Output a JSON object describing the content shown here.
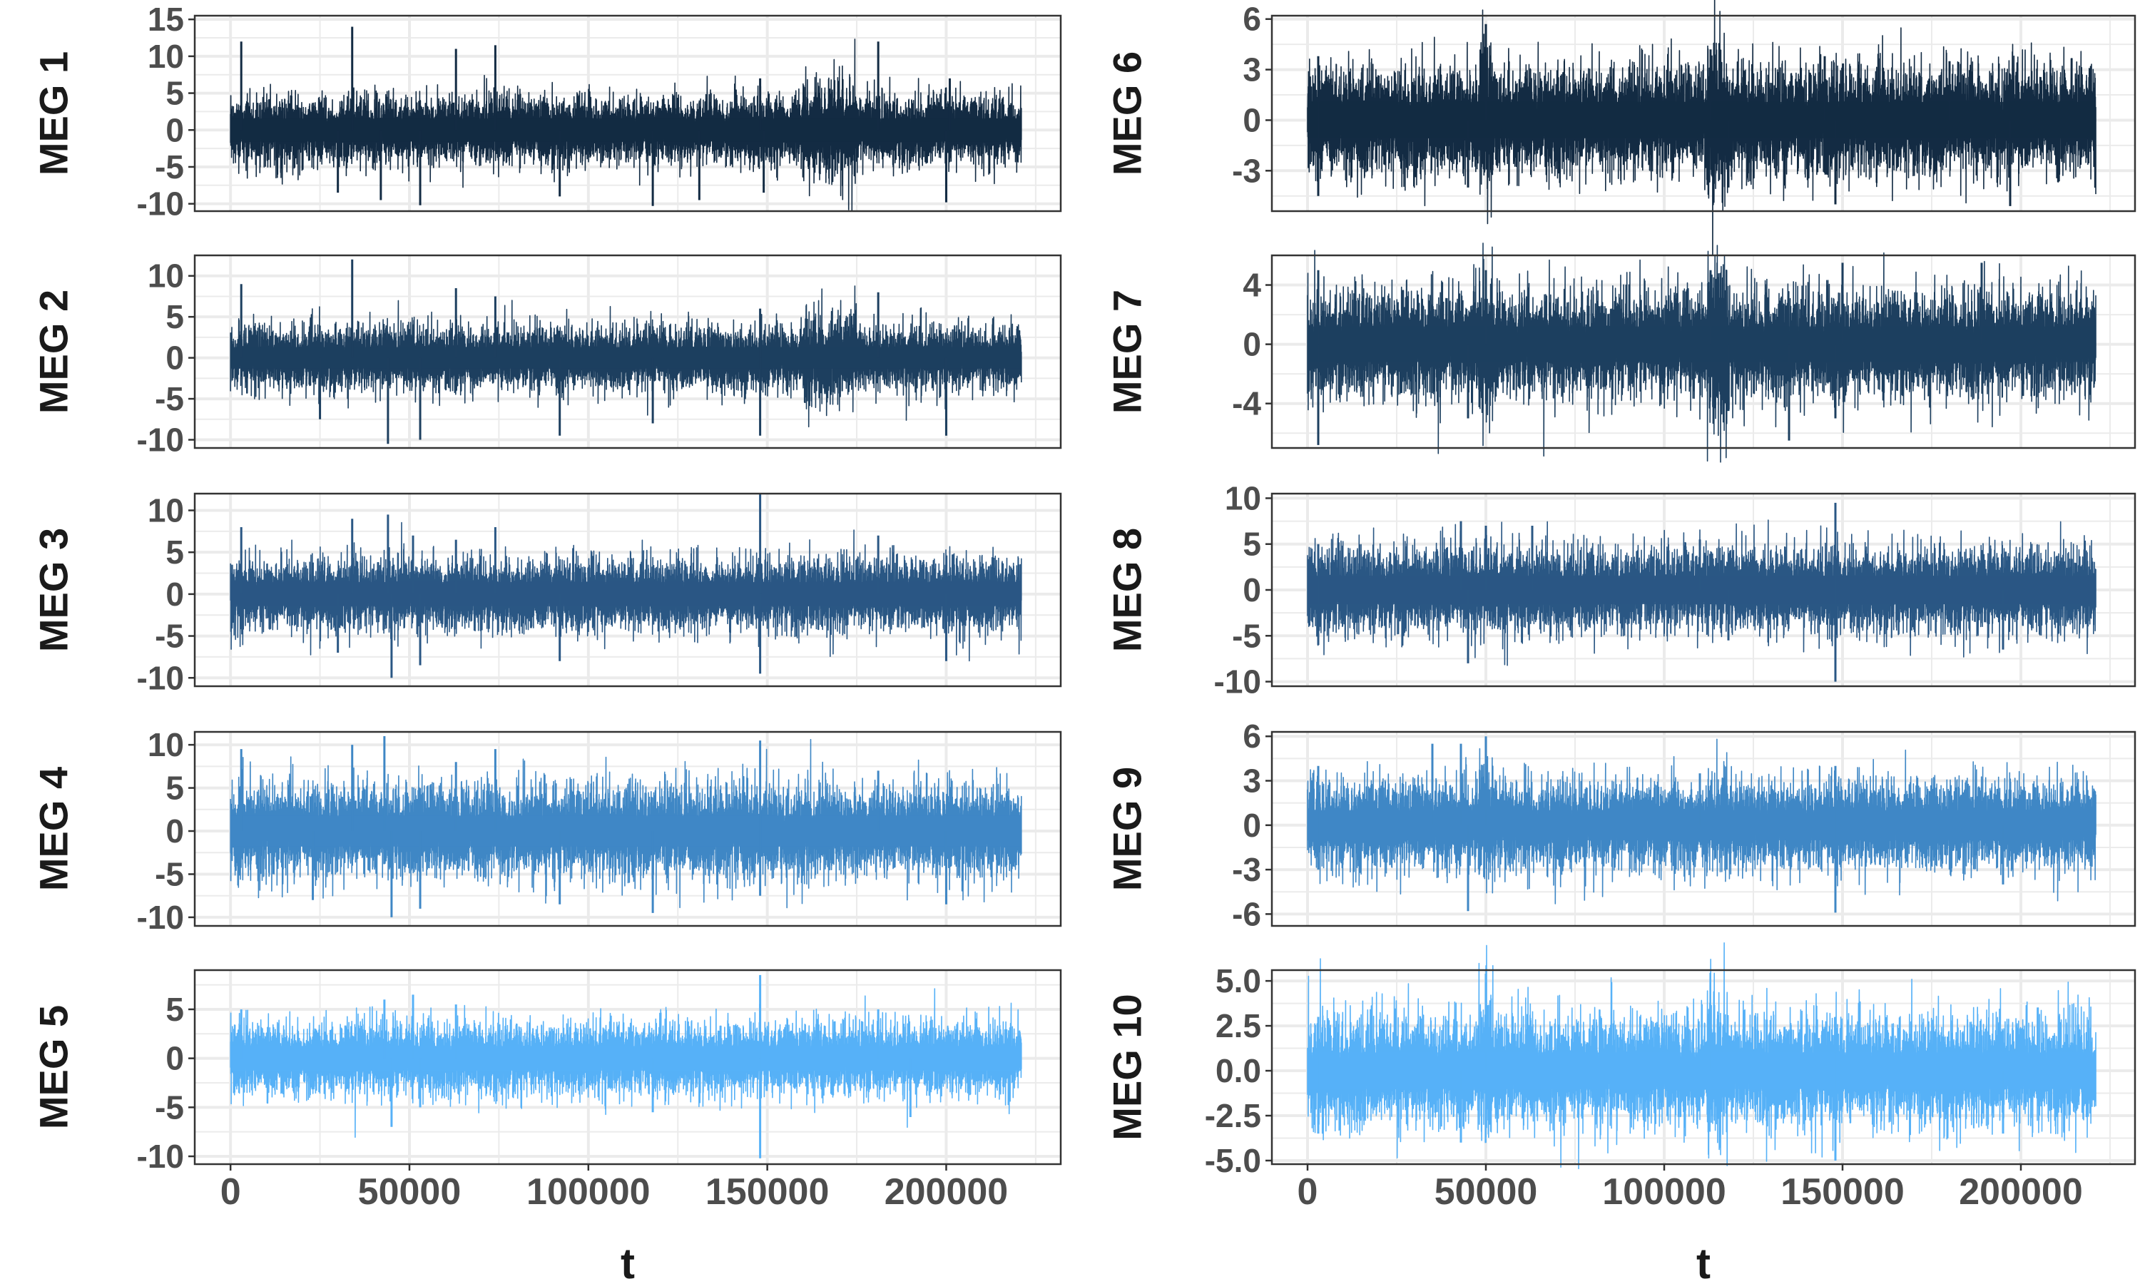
{
  "chart_data": {
    "type": "line",
    "x_axis": {
      "label": "t",
      "range": [
        -10000,
        232000
      ],
      "ticks": [
        0,
        50000,
        100000,
        150000,
        200000
      ],
      "tick_labels": [
        "0",
        "50000",
        "100000",
        "150000",
        "200000"
      ]
    },
    "t_range": [
      0,
      221000
    ],
    "background": "#ffffff",
    "grid": true,
    "grid_color": "#ebebeb",
    "panel_border_color": "#333333",
    "layout": "two columns of five panels",
    "legend": "none",
    "panels": [
      {
        "name": "MEG 1",
        "color": "#132b43",
        "ylim": [
          -11,
          15.5
        ],
        "yticks": [
          -10,
          -5,
          0,
          5,
          10,
          15
        ],
        "ytick_labels": [
          "-10",
          "-5",
          "0",
          "5",
          "10",
          "15"
        ],
        "band_sd": 1.3,
        "spikes": [
          [
            3000,
            12
          ],
          [
            34000,
            14
          ],
          [
            63000,
            11
          ],
          [
            74000,
            11.5
          ],
          [
            148000,
            7
          ],
          [
            181000,
            12
          ],
          [
            201000,
            7
          ],
          [
            42000,
            -9.5
          ],
          [
            53000,
            -10.2
          ],
          [
            92000,
            -9
          ],
          [
            118000,
            -10.3
          ],
          [
            131000,
            -9.5
          ],
          [
            149000,
            -8.5
          ],
          [
            200000,
            -9.8
          ],
          [
            30000,
            -8.5
          ]
        ],
        "bumps": [
          [
            160000,
            175000,
            0.9
          ]
        ]
      },
      {
        "name": "MEG 2",
        "color": "#1d3f5f",
        "ylim": [
          -11,
          12.5
        ],
        "yticks": [
          -10,
          -5,
          0,
          5,
          10
        ],
        "ytick_labels": [
          "-10",
          "-5",
          "0",
          "5",
          "10"
        ],
        "band_sd": 1.1,
        "spikes": [
          [
            3000,
            9
          ],
          [
            34000,
            12
          ],
          [
            63000,
            8.5
          ],
          [
            74000,
            7.5
          ],
          [
            148000,
            6
          ],
          [
            181000,
            8
          ],
          [
            44000,
            -10.5
          ],
          [
            53000,
            -10
          ],
          [
            92000,
            -9.5
          ],
          [
            148000,
            -9.5
          ],
          [
            200000,
            -9.5
          ],
          [
            118000,
            -8
          ],
          [
            25000,
            -7.5
          ]
        ],
        "bumps": [
          [
            160000,
            175000,
            0.8
          ]
        ]
      },
      {
        "name": "MEG 3",
        "color": "#2a5784",
        "ylim": [
          -11,
          12
        ],
        "yticks": [
          -10,
          -5,
          0,
          5,
          10
        ],
        "ytick_labels": [
          "-10",
          "-5",
          "0",
          "5",
          "10"
        ],
        "band_sd": 1.2,
        "spikes": [
          [
            3000,
            8
          ],
          [
            34000,
            9
          ],
          [
            44000,
            9.5
          ],
          [
            51000,
            7
          ],
          [
            63000,
            6.5
          ],
          [
            74000,
            8
          ],
          [
            148000,
            12
          ],
          [
            181000,
            7
          ],
          [
            45000,
            -10
          ],
          [
            53000,
            -8.5
          ],
          [
            92000,
            -8
          ],
          [
            148000,
            -9.5
          ],
          [
            200000,
            -8
          ],
          [
            30000,
            -7
          ]
        ],
        "bumps": []
      },
      {
        "name": "MEG 4",
        "color": "#3f87c5",
        "ylim": [
          -11,
          11.5
        ],
        "yticks": [
          -10,
          -5,
          0,
          5,
          10
        ],
        "ytick_labels": [
          "-10",
          "-5",
          "0",
          "5",
          "10"
        ],
        "band_sd": 1.5,
        "spikes": [
          [
            3000,
            9.5
          ],
          [
            34000,
            10
          ],
          [
            43000,
            11
          ],
          [
            63000,
            8
          ],
          [
            74000,
            9.5
          ],
          [
            148000,
            10.5
          ],
          [
            181000,
            7
          ],
          [
            45000,
            -10
          ],
          [
            53000,
            -9
          ],
          [
            92000,
            -8.5
          ],
          [
            118000,
            -9.5
          ],
          [
            148000,
            -7.5
          ],
          [
            200000,
            -8.5
          ],
          [
            23000,
            -8
          ]
        ],
        "bumps": []
      },
      {
        "name": "MEG 5",
        "color": "#56b1f7",
        "ylim": [
          -10.8,
          9
        ],
        "yticks": [
          -10,
          -5,
          0,
          5
        ],
        "ytick_labels": [
          "-10",
          "-5",
          "0",
          "5"
        ],
        "band_sd": 1.05,
        "spikes": [
          [
            3000,
            5
          ],
          [
            43000,
            6
          ],
          [
            51000,
            6.5
          ],
          [
            63000,
            5.5
          ],
          [
            148000,
            8.5
          ],
          [
            181000,
            5
          ],
          [
            45000,
            -7
          ],
          [
            53000,
            -5
          ],
          [
            148000,
            -10.2
          ],
          [
            190000,
            -6
          ],
          [
            118000,
            -5.5
          ]
        ],
        "bumps": []
      },
      {
        "name": "MEG 6",
        "color": "#132b43",
        "ylim": [
          -5.4,
          6.2
        ],
        "yticks": [
          -3,
          0,
          3,
          6
        ],
        "ytick_labels": [
          "-3",
          "0",
          "3",
          "6"
        ],
        "band_sd": 0.9,
        "spikes": [
          [
            3000,
            3.8
          ],
          [
            50000,
            5.7
          ],
          [
            113000,
            4.2
          ],
          [
            145000,
            3.8
          ],
          [
            180000,
            3.5
          ],
          [
            3000,
            -4.5
          ],
          [
            45000,
            -4
          ],
          [
            148000,
            -5
          ],
          [
            197000,
            -5.1
          ],
          [
            118000,
            -4
          ]
        ],
        "bumps": [
          [
            112000,
            118000,
            1.2
          ],
          [
            48000,
            52000,
            0.9
          ]
        ]
      },
      {
        "name": "MEG 7",
        "color": "#1d3f5f",
        "ylim": [
          -7,
          6
        ],
        "yticks": [
          -4,
          0,
          4
        ],
        "ytick_labels": [
          "-4",
          "0",
          "4"
        ],
        "band_sd": 1.0,
        "spikes": [
          [
            3000,
            5
          ],
          [
            50000,
            5
          ],
          [
            113000,
            5
          ],
          [
            150000,
            5.5
          ],
          [
            189000,
            5.5
          ],
          [
            3000,
            -6.8
          ],
          [
            45000,
            -5
          ],
          [
            148000,
            -5
          ],
          [
            135000,
            -6.5
          ],
          [
            118000,
            -4.5
          ]
        ],
        "bumps": [
          [
            112000,
            118000,
            1.3
          ],
          [
            48000,
            52000,
            0.9
          ]
        ]
      },
      {
        "name": "MEG 8",
        "color": "#2a5784",
        "ylim": [
          -10.5,
          10.5
        ],
        "yticks": [
          -10,
          -5,
          0,
          5,
          10
        ],
        "ytick_labels": [
          "-10",
          "-5",
          "0",
          "5",
          "10"
        ],
        "band_sd": 1.3,
        "spikes": [
          [
            3000,
            5
          ],
          [
            43000,
            7.5
          ],
          [
            50000,
            7
          ],
          [
            63000,
            7
          ],
          [
            148000,
            9.5
          ],
          [
            110000,
            5.5
          ],
          [
            45000,
            -8
          ],
          [
            148000,
            -10
          ],
          [
            118000,
            -5.5
          ],
          [
            195000,
            -6.5
          ],
          [
            3000,
            -6
          ]
        ],
        "bumps": []
      },
      {
        "name": "MEG 9",
        "color": "#3f87c5",
        "ylim": [
          -6.8,
          6.3
        ],
        "yticks": [
          -6,
          -3,
          0,
          3,
          6
        ],
        "ytick_labels": [
          "-6",
          "-3",
          "0",
          "3",
          "6"
        ],
        "band_sd": 0.85,
        "spikes": [
          [
            3000,
            4
          ],
          [
            35000,
            5.5
          ],
          [
            43000,
            5.5
          ],
          [
            50000,
            6
          ],
          [
            110000,
            3.5
          ],
          [
            148000,
            4
          ],
          [
            45000,
            -5.8
          ],
          [
            148000,
            -5.9
          ],
          [
            3000,
            -3
          ],
          [
            195000,
            -4
          ]
        ],
        "bumps": [
          [
            112000,
            118000,
            0.6
          ],
          [
            48000,
            52000,
            0.8
          ]
        ]
      },
      {
        "name": "MEG 10",
        "color": "#56b1f7",
        "ylim": [
          -5.2,
          5.6
        ],
        "yticks": [
          -5,
          -2.5,
          0,
          2.5,
          5
        ],
        "ytick_labels": [
          "-5.0",
          "-2.5",
          "0.0",
          "2.5",
          "5.0"
        ],
        "band_sd": 0.85,
        "spikes": [
          [
            3000,
            3
          ],
          [
            50000,
            5.4
          ],
          [
            113000,
            3.5
          ],
          [
            148000,
            3
          ],
          [
            43000,
            -4
          ],
          [
            148000,
            -5
          ],
          [
            3000,
            -3.5
          ],
          [
            195000,
            -3.5
          ]
        ],
        "bumps": [
          [
            112000,
            118000,
            0.8
          ],
          [
            48000,
            52000,
            1.0
          ]
        ]
      }
    ]
  }
}
